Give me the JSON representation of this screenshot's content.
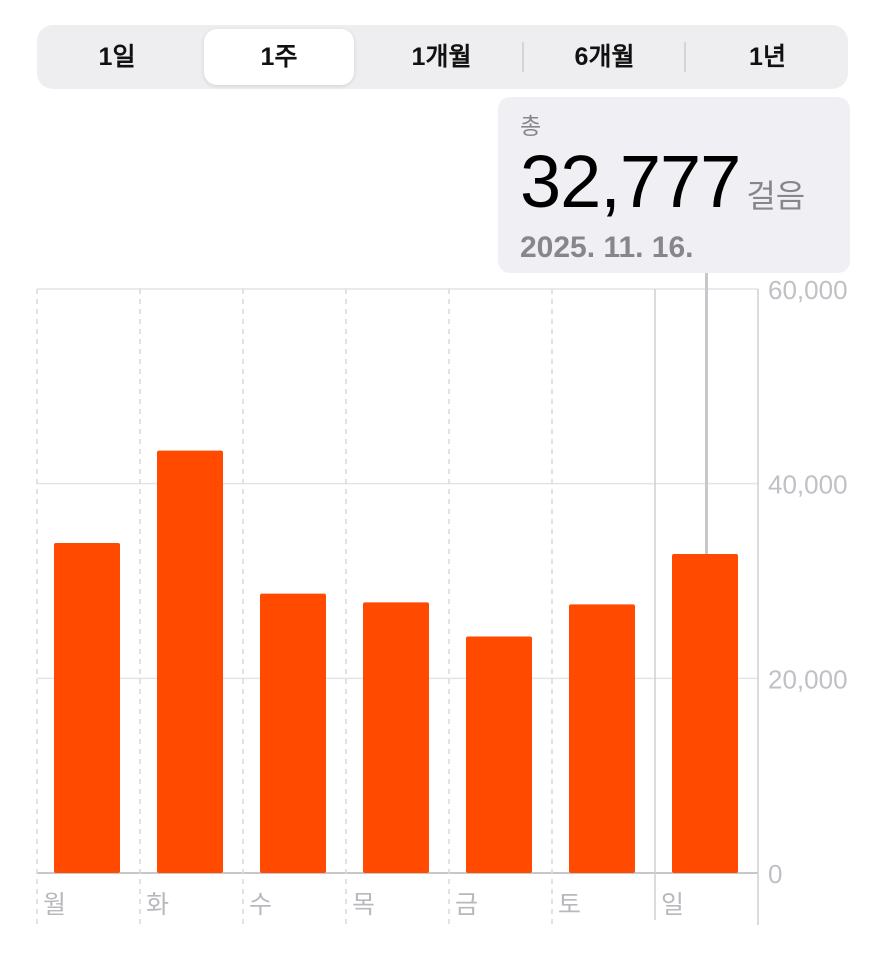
{
  "segmented_control": {
    "items": [
      "1일",
      "1주",
      "1개월",
      "6개월",
      "1년"
    ],
    "selected": "1주"
  },
  "tooltip": {
    "label": "총",
    "value": "32,777",
    "unit": "걸음",
    "date": "2025. 11. 16."
  },
  "chart_data": {
    "type": "bar",
    "categories": [
      "월",
      "화",
      "수",
      "목",
      "금",
      "토",
      "일"
    ],
    "values": [
      33900,
      43400,
      28700,
      27800,
      24300,
      27600,
      32777
    ],
    "y_ticks": [
      "0",
      "20,000",
      "40,000",
      "60,000"
    ],
    "ylim": [
      0,
      60000
    ],
    "y_axis_side": "right",
    "grid": true,
    "highlighted_category": "일",
    "bar_color": "#ff4a00"
  }
}
